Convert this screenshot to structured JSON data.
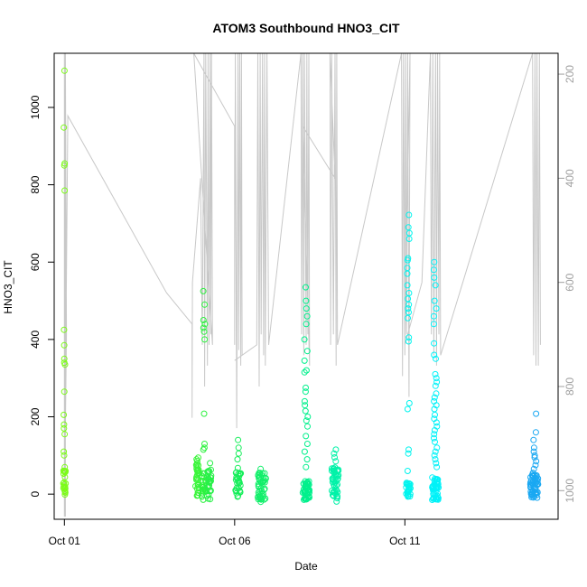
{
  "chart_data": {
    "type": "scatter",
    "title": "ATOM3 Southbound HNO3_CIT",
    "xlabel": "Date",
    "ylabel": "HNO3_CIT",
    "xlim": [
      -0.3,
      14.5
    ],
    "ylim": [
      -65,
      1140
    ],
    "x_ticks": [
      {
        "value": 0,
        "label": "Oct 01"
      },
      {
        "value": 5,
        "label": "Oct 06"
      },
      {
        "value": 10,
        "label": "Oct 11"
      }
    ],
    "y_ticks": [
      0,
      200,
      400,
      600,
      800,
      1000
    ],
    "y2_ticks": [
      200,
      400,
      600,
      800,
      1000
    ],
    "y2lim": [
      1055,
      160
    ],
    "secondary_axis_color": "#a0a0a0",
    "altitude_trace_color": "#c8c8c8",
    "color_ramp": [
      "#7cfc00",
      "#00ff7f",
      "#00ffff",
      "#1e90ff"
    ],
    "clusters": [
      {
        "x": 0.0,
        "spread": 0.04,
        "base": 30,
        "jitter": 40,
        "n": 24,
        "color": "#7dfb1a",
        "extra": [
          1095,
          948,
          855,
          850,
          785,
          425,
          385,
          350,
          340,
          335,
          265,
          205,
          180,
          170,
          155,
          110,
          100
        ]
      },
      {
        "x": 3.9,
        "spread": 0.05,
        "base": 45,
        "jitter": 50,
        "n": 34,
        "color": "#3cf53c",
        "extra": [
          90,
          80,
          70
        ]
      },
      {
        "x": 4.1,
        "spread": 0.08,
        "base": 20,
        "jitter": 35,
        "n": 22,
        "color": "#2df23f",
        "extra": [
          525,
          490,
          450,
          440,
          430,
          420,
          400,
          208,
          130,
          120,
          115
        ]
      },
      {
        "x": 4.25,
        "spread": 0.06,
        "base": 25,
        "jitter": 40,
        "n": 26,
        "color": "#28f048",
        "extra": [
          80,
          60
        ]
      },
      {
        "x": 5.1,
        "spread": 0.08,
        "base": 30,
        "jitter": 40,
        "n": 30,
        "color": "#16ee5a",
        "extra": [
          140,
          120,
          105,
          90
        ]
      },
      {
        "x": 5.8,
        "spread": 0.12,
        "base": 20,
        "jitter": 35,
        "n": 46,
        "color": "#12ef6a",
        "extra": [
          65,
          55,
          -20
        ]
      },
      {
        "x": 7.1,
        "spread": 0.1,
        "base": 10,
        "jitter": 25,
        "n": 44,
        "color": "#00f08c",
        "extra": [
          535,
          500,
          480,
          460,
          440,
          400,
          370,
          345,
          320,
          315,
          275,
          265,
          240,
          230,
          215,
          200,
          190,
          175,
          150,
          130,
          110,
          90,
          70
        ]
      },
      {
        "x": 7.95,
        "spread": 0.1,
        "base": 25,
        "jitter": 45,
        "n": 46,
        "color": "#00f2a8",
        "extra": [
          115,
          105,
          95,
          85
        ]
      },
      {
        "x": 10.1,
        "spread": 0.07,
        "base": 10,
        "jitter": 20,
        "n": 26,
        "color": "#00f4ee",
        "extra": [
          722,
          690,
          675,
          660,
          610,
          605,
          585,
          570,
          540,
          520,
          505,
          490,
          480,
          470,
          455,
          405,
          395,
          235,
          220,
          115,
          105,
          60
        ]
      },
      {
        "x": 10.9,
        "spread": 0.1,
        "base": 15,
        "jitter": 30,
        "n": 46,
        "color": "#00f2f8",
        "extra": [
          600,
          580,
          560,
          540,
          500,
          480,
          460,
          440,
          390,
          360,
          350,
          310,
          300,
          290,
          280,
          260,
          250,
          240,
          230,
          220,
          205,
          195,
          185,
          175,
          165,
          155,
          145,
          135,
          120,
          110,
          100,
          90,
          80,
          70
        ]
      },
      {
        "x": 13.8,
        "spread": 0.12,
        "base": 20,
        "jitter": 30,
        "n": 54,
        "color": "#1aa8f2",
        "extra": [
          208,
          160,
          140,
          120,
          110,
          100,
          95,
          85,
          75,
          65,
          55
        ]
      }
    ],
    "altitude_trace": [
      [
        0.0,
        1050
      ],
      [
        0.0,
        160
      ],
      [
        0.03,
        1050
      ],
      [
        0.03,
        160
      ],
      [
        0.06,
        700
      ],
      [
        0.0,
        1050
      ],
      [
        0.1,
        280
      ],
      [
        3.0,
        620
      ],
      [
        3.75,
        680
      ],
      [
        3.75,
        860
      ],
      [
        3.76,
        600
      ],
      [
        4.0,
        400
      ],
      [
        4.05,
        720
      ],
      [
        4.1,
        160
      ],
      [
        4.12,
        800
      ],
      [
        4.15,
        160
      ],
      [
        4.2,
        760
      ],
      [
        4.22,
        160
      ],
      [
        4.25,
        720
      ],
      [
        4.28,
        160
      ],
      [
        4.3,
        700
      ],
      [
        4.32,
        160
      ],
      [
        4.35,
        720
      ],
      [
        3.8,
        160
      ],
      [
        5.0,
        300
      ],
      [
        5.0,
        720
      ],
      [
        5.02,
        160
      ],
      [
        5.06,
        880
      ],
      [
        5.1,
        160
      ],
      [
        5.12,
        730
      ],
      [
        5.15,
        160
      ],
      [
        5.18,
        760
      ],
      [
        5.2,
        160
      ],
      [
        5.22,
        740
      ],
      [
        5.0,
        750
      ],
      [
        5.65,
        720
      ],
      [
        5.68,
        160
      ],
      [
        5.72,
        800
      ],
      [
        5.75,
        160
      ],
      [
        5.78,
        700
      ],
      [
        5.82,
        160
      ],
      [
        5.85,
        740
      ],
      [
        5.88,
        160
      ],
      [
        5.9,
        760
      ],
      [
        5.95,
        160
      ],
      [
        6.0,
        720
      ],
      [
        6.95,
        160
      ],
      [
        6.97,
        700
      ],
      [
        7.0,
        160
      ],
      [
        7.03,
        740
      ],
      [
        7.05,
        160
      ],
      [
        7.1,
        720
      ],
      [
        7.12,
        160
      ],
      [
        7.15,
        700
      ],
      [
        7.18,
        160
      ],
      [
        7.2,
        760
      ],
      [
        7.0,
        300
      ],
      [
        7.95,
        400
      ],
      [
        7.8,
        160
      ],
      [
        7.82,
        720
      ],
      [
        7.85,
        160
      ],
      [
        7.9,
        700
      ],
      [
        7.95,
        160
      ],
      [
        7.98,
        760
      ],
      [
        8.0,
        160
      ],
      [
        8.02,
        720
      ],
      [
        9.9,
        160
      ],
      [
        9.93,
        780
      ],
      [
        9.96,
        160
      ],
      [
        10.0,
        740
      ],
      [
        10.02,
        160
      ],
      [
        10.05,
        700
      ],
      [
        10.08,
        160
      ],
      [
        10.12,
        820
      ],
      [
        10.15,
        160
      ],
      [
        10.0,
        720
      ],
      [
        10.5,
        600
      ],
      [
        10.75,
        160
      ],
      [
        10.78,
        700
      ],
      [
        10.82,
        160
      ],
      [
        10.85,
        740
      ],
      [
        10.9,
        160
      ],
      [
        10.93,
        760
      ],
      [
        10.96,
        160
      ],
      [
        11.0,
        700
      ],
      [
        11.02,
        160
      ],
      [
        11.05,
        740
      ],
      [
        13.75,
        160
      ],
      [
        13.78,
        740
      ],
      [
        13.82,
        160
      ],
      [
        13.85,
        760
      ],
      [
        13.88,
        160
      ],
      [
        13.92,
        760
      ],
      [
        13.95,
        160
      ],
      [
        13.98,
        720
      ]
    ]
  }
}
